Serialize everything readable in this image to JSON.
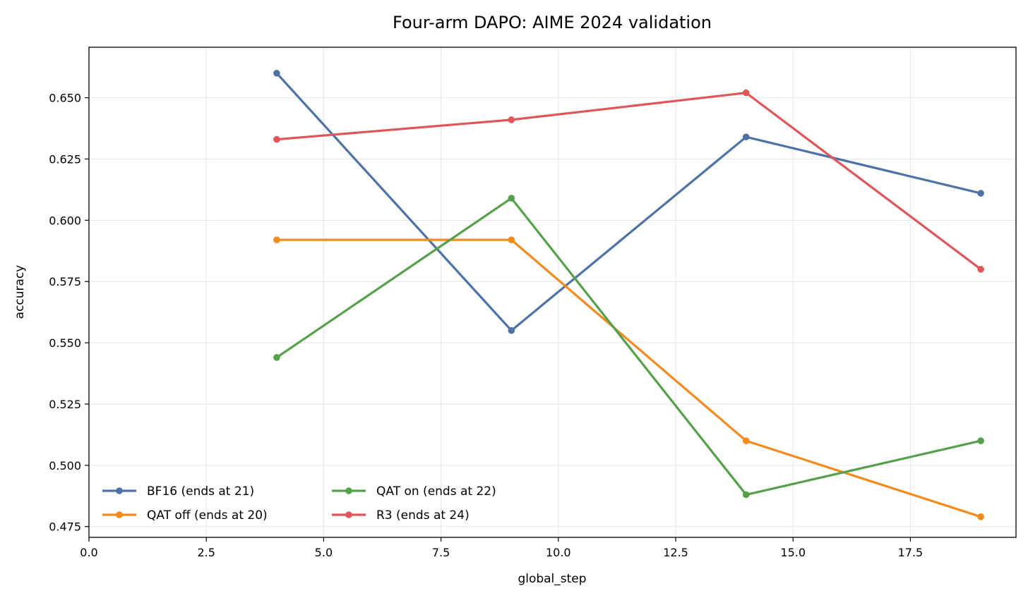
{
  "chart_data": {
    "type": "line",
    "title": "Four-arm DAPO: AIME 2024 validation",
    "xlabel": "global_step",
    "ylabel": "accuracy",
    "xlim": [
      0,
      19.75
    ],
    "ylim": [
      0.4706,
      0.6706
    ],
    "x_ticks": [
      0.0,
      2.5,
      5.0,
      7.5,
      10.0,
      12.5,
      15.0,
      17.5
    ],
    "x_tick_labels": [
      "0.0",
      "2.5",
      "5.0",
      "7.5",
      "10.0",
      "12.5",
      "15.0",
      "17.5"
    ],
    "y_ticks": [
      0.475,
      0.5,
      0.525,
      0.55,
      0.575,
      0.6,
      0.625,
      0.65
    ],
    "y_tick_labels": [
      "0.475",
      "0.500",
      "0.525",
      "0.550",
      "0.575",
      "0.600",
      "0.625",
      "0.650"
    ],
    "grid": true,
    "legend_position": "lower-left",
    "x": [
      4,
      9,
      14,
      19
    ],
    "series": [
      {
        "name": "BF16 (ends at 21)",
        "color": "#4c72a6",
        "values": [
          0.66,
          0.555,
          0.634,
          0.611
        ]
      },
      {
        "name": "QAT off (ends at 20)",
        "color": "#f28a1c",
        "values": [
          0.592,
          0.592,
          0.51,
          0.479
        ]
      },
      {
        "name": "QAT on (ends at 22)",
        "color": "#55a04a",
        "values": [
          0.544,
          0.609,
          0.488,
          0.51
        ]
      },
      {
        "name": "R3 (ends at 24)",
        "color": "#e05558",
        "values": [
          0.633,
          0.641,
          0.652,
          0.58
        ]
      }
    ]
  }
}
